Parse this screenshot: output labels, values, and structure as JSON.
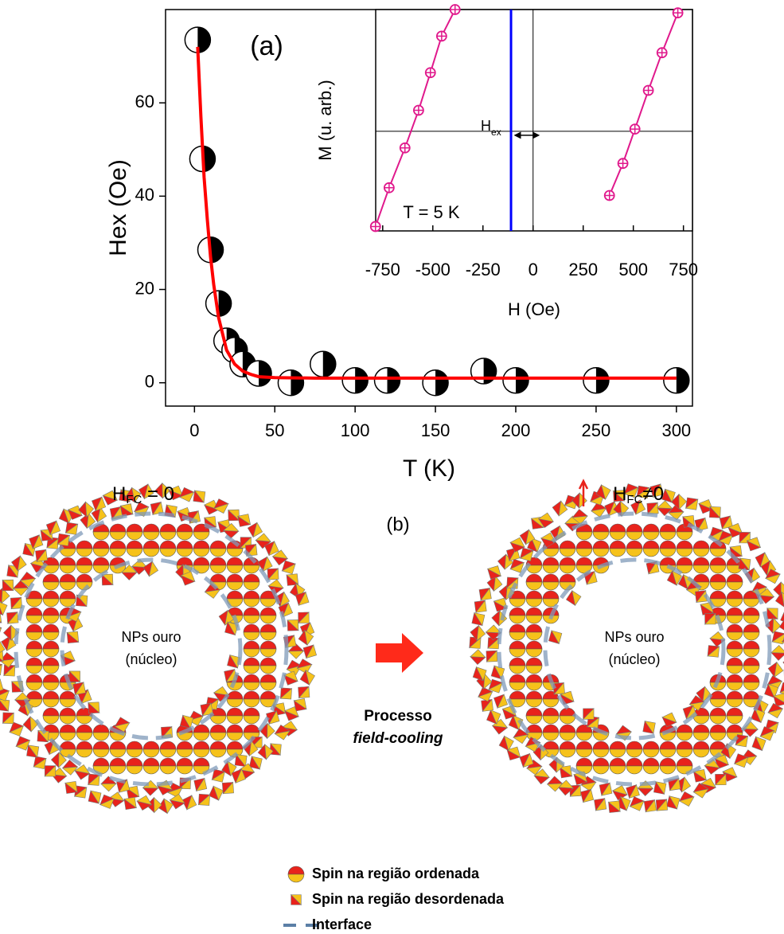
{
  "chart_data": [
    {
      "type": "scatter",
      "title": "(a)",
      "xlabel": "T (K)",
      "ylabel": "Hex (Oe)",
      "xlim": [
        -18,
        310
      ],
      "ylim": [
        -5,
        80
      ],
      "xticks": [
        0,
        50,
        100,
        150,
        200,
        250,
        300
      ],
      "yticks": [
        0,
        20,
        40,
        60
      ],
      "series": [
        {
          "marker": "half-circle",
          "color": "#000000",
          "x": [
            2,
            5,
            10,
            15,
            20,
            25,
            30,
            40,
            60,
            80,
            100,
            120,
            150,
            180,
            200,
            250,
            300
          ],
          "values": [
            73.5,
            48,
            28.5,
            17,
            9,
            7,
            4,
            2,
            0,
            4,
            0.5,
            0.5,
            0,
            2.5,
            0.5,
            0.5,
            0.5
          ]
        },
        {
          "line": true,
          "color": "#ff0000",
          "x": [
            2,
            4,
            6,
            8,
            10,
            12,
            15,
            20,
            25,
            30,
            35,
            40,
            50,
            75,
            100,
            150,
            200,
            250,
            300
          ],
          "values": [
            72,
            57,
            44,
            35,
            27,
            21,
            14,
            7,
            4,
            2.5,
            1.8,
            1.3,
            1.1,
            1,
            1,
            1,
            1,
            1,
            1
          ]
        }
      ]
    },
    {
      "type": "scatter",
      "xlabel": "H (Oe)",
      "ylabel": "M (u. arb.)",
      "xlim": [
        -785,
        795
      ],
      "ylim": [
        -0.9,
        1.1
      ],
      "xticks": [
        -750,
        -500,
        -250,
        0,
        250,
        500,
        750
      ],
      "zero_lines": true,
      "annotation": "T = 5 K",
      "exchange_field": {
        "value": -110,
        "color": "#0000ff",
        "label": "H",
        "label_sub": "ex"
      },
      "series": [
        {
          "line": true,
          "marker": "crossed-circle",
          "color": "#e0198c",
          "x": [
            -786,
            -718,
            -639,
            -571,
            -512,
            -456,
            -389
          ],
          "values": [
            -0.86,
            -0.51,
            -0.15,
            0.19,
            0.53,
            0.86,
            1.1
          ]
        },
        {
          "line": true,
          "marker": "crossed-circle",
          "color": "#e0198c",
          "x": [
            381,
            448,
            508,
            575,
            643,
            722
          ],
          "values": [
            -0.58,
            -0.29,
            0.02,
            0.37,
            0.71,
            1.07
          ]
        }
      ]
    }
  ],
  "diagram": {
    "label": "(b)",
    "states": [
      {
        "title": {
          "main": "H",
          "sub": "FC",
          "rest": " = 0"
        },
        "core": [
          "NPs ouro",
          "(núcleo)"
        ]
      },
      {
        "title": {
          "main": "H",
          "sub": "FC",
          "rest": "≠0"
        },
        "core": [
          "NPs ouro",
          "(núcleo)"
        ]
      }
    ],
    "process": [
      "Processo",
      "field-cooling"
    ],
    "legend": [
      "Spin na região ordenada",
      "Spin na região desordenada",
      "Interface"
    ]
  }
}
